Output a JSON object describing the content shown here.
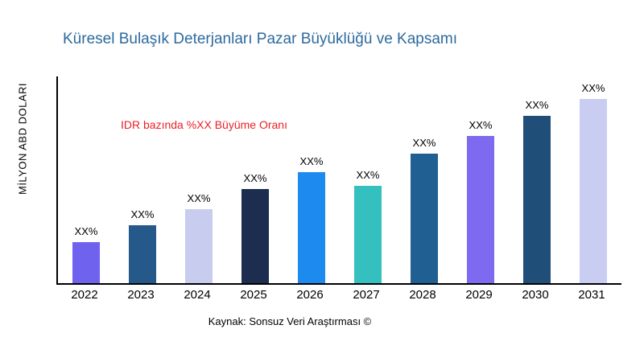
{
  "header": {
    "title": "Küresel Bulaşık Deterjanları Pazar Büyüklüğü ve Kapsamı"
  },
  "annotation": {
    "text": "IDR bazında %XX Büyüme Oranı",
    "color": "#ec2027"
  },
  "footer": {
    "source": "Kaynak: Sonsuz Veri Araştırması ©"
  },
  "chart_data": {
    "type": "bar",
    "title": "Küresel Bulaşık Deterjanları Pazar Büyüklüğü ve Kapsamı",
    "xlabel": "",
    "ylabel": "MİLYON ABD DOLARI",
    "categories": [
      "2022",
      "2023",
      "2024",
      "2025",
      "2026",
      "2027",
      "2028",
      "2029",
      "2030",
      "2031"
    ],
    "values": [
      52,
      73,
      93,
      118,
      140,
      122,
      163,
      185,
      210,
      232
    ],
    "bar_labels": [
      "XX%",
      "XX%",
      "XX%",
      "XX%",
      "XX%",
      "XX%",
      "XX%",
      "XX%",
      "XX%",
      "XX%"
    ],
    "bar_colors": [
      "#6f62ef",
      "#24598a",
      "#c8cdf0",
      "#1d2d50",
      "#1d8af0",
      "#35c0c0",
      "#1f5f92",
      "#7e6af0",
      "#1f4e79",
      "#c9cdf2"
    ],
    "ylim": [
      0,
      260
    ],
    "grid": false,
    "legend_position": "none",
    "value_note": "Values are relative bar heights estimated from pixels; actual figures masked as XX% in source image"
  }
}
